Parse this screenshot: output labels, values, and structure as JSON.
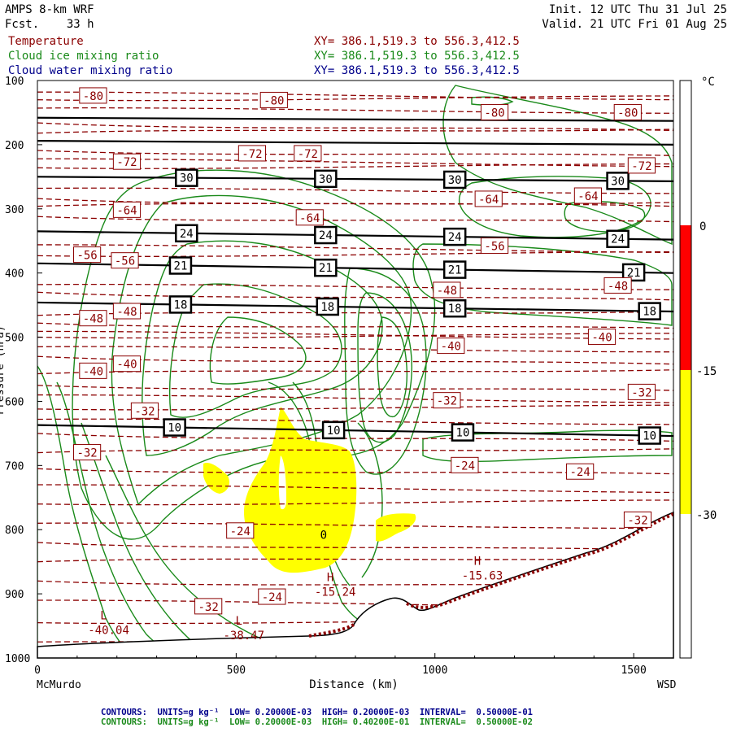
{
  "header": {
    "model": "AMPS 8-km WRF",
    "fcst": "Fcst.    33 h",
    "init": "Init. 12 UTC Thu 31 Jul 25",
    "valid": "Valid. 21 UTC Fri 01 Aug 25",
    "fields": [
      {
        "name": "Temperature",
        "xy": "XY= 386.1,519.3 to 556.3,412.5",
        "color": "#8b0000"
      },
      {
        "name": "Cloud ice mixing ratio",
        "xy": "XY= 386.1,519.3 to 556.3,412.5",
        "color": "#1a8a1a"
      },
      {
        "name": "Cloud water mixing ratio",
        "xy": "XY= 386.1,519.3 to 556.3,412.5",
        "color": "#00008b"
      }
    ]
  },
  "footer": {
    "line1": "CONTOURS:  UNITS=g kg⁻¹  LOW= 0.20000E-03  HIGH= 0.20000E-03  INTERVAL=  0.50000E-01",
    "line2": "CONTOURS:  UNITS=g kg⁻¹  LOW= 0.20000E-03  HIGH= 0.40200E-01  INTERVAL=  0.50000E-02",
    "line1_color": "#00008b",
    "line2_color": "#1a8a1a"
  },
  "colors": {
    "temperature": "#8b0000",
    "ice": "#1a8a1a",
    "theta": "#000000",
    "shade_red": "#ff0000",
    "shade_yellow": "#ffff00"
  },
  "chart_data": {
    "type": "cross-section",
    "xlabel": "Distance (km)",
    "ylabel": "Pressure (hPa)",
    "xlim": [
      0,
      1600
    ],
    "ylim": [
      1000,
      100
    ],
    "x_ticks": [
      0,
      500,
      1000,
      1500
    ],
    "y_ticks": [
      100,
      200,
      300,
      400,
      500,
      600,
      700,
      800,
      900,
      1000
    ],
    "x_endpoints": {
      "left": "McMurdo",
      "right": "WSD"
    },
    "colorbar": {
      "unit": "°C",
      "labels": [
        0,
        -15,
        -30
      ],
      "bands": [
        {
          "from": 0,
          "to": -15,
          "color": "#ff0000"
        },
        {
          "from": -15,
          "to": -30,
          "color": "#ffff00"
        }
      ]
    },
    "theta_lines": [
      {
        "label": "30",
        "points": [
          [
            0,
            250
          ],
          [
            1600,
            257
          ]
        ],
        "label_x": [
          375,
          725,
          1050,
          1460
        ]
      },
      {
        "label": "24",
        "points": [
          [
            0,
            335
          ],
          [
            1600,
            348
          ]
        ],
        "label_x": [
          375,
          725,
          1050,
          1460
        ]
      },
      {
        "label": "21",
        "points": [
          [
            0,
            385
          ],
          [
            1600,
            400
          ]
        ],
        "label_x": [
          360,
          725,
          1050,
          1500
        ]
      },
      {
        "label": "18",
        "points": [
          [
            0,
            446
          ],
          [
            1600,
            460
          ]
        ],
        "label_x": [
          360,
          730,
          1050,
          1540
        ]
      },
      {
        "label": "10",
        "points": [
          [
            0,
            637
          ],
          [
            1600,
            654
          ]
        ],
        "label_x": [
          345,
          745,
          1070,
          1540
        ]
      }
    ],
    "top_lines_hpa": [
      [
        [
          0,
          158
        ],
        [
          1600,
          163
        ]
      ],
      [
        [
          0,
          194
        ],
        [
          1600,
          200
        ]
      ]
    ],
    "temperature_labels": [
      {
        "text": "-80",
        "x": 140,
        "p": 124
      },
      {
        "text": "-80",
        "x": 595,
        "p": 131
      },
      {
        "text": "-80",
        "x": 1150,
        "p": 150
      },
      {
        "text": "-80",
        "x": 1485,
        "p": 150
      },
      {
        "text": "-72",
        "x": 225,
        "p": 227
      },
      {
        "text": "-72",
        "x": 540,
        "p": 214
      },
      {
        "text": "-72",
        "x": 680,
        "p": 214
      },
      {
        "text": "-72",
        "x": 1520,
        "p": 233
      },
      {
        "text": "-64",
        "x": 225,
        "p": 302
      },
      {
        "text": "-64",
        "x": 685,
        "p": 314
      },
      {
        "text": "-64",
        "x": 1135,
        "p": 285
      },
      {
        "text": "-64",
        "x": 1385,
        "p": 280
      },
      {
        "text": "-56",
        "x": 125,
        "p": 372
      },
      {
        "text": "-56",
        "x": 220,
        "p": 381
      },
      {
        "text": "-56",
        "x": 1150,
        "p": 358
      },
      {
        "text": "-48",
        "x": 225,
        "p": 460
      },
      {
        "text": "-48",
        "x": 1030,
        "p": 427
      },
      {
        "text": "-48",
        "x": 1460,
        "p": 420
      },
      {
        "text": "-48",
        "x": 140,
        "p": 471
      },
      {
        "text": "-40",
        "x": 140,
        "p": 553
      },
      {
        "text": "-40",
        "x": 225,
        "p": 542
      },
      {
        "text": "-40",
        "x": 1040,
        "p": 514
      },
      {
        "text": "-40",
        "x": 1420,
        "p": 500
      },
      {
        "text": "-32",
        "x": 270,
        "p": 615
      },
      {
        "text": "-32",
        "x": 125,
        "p": 680
      },
      {
        "text": "-32",
        "x": 1030,
        "p": 599
      },
      {
        "text": "-32",
        "x": 1520,
        "p": 586
      },
      {
        "text": "-32",
        "x": 430,
        "p": 920
      },
      {
        "text": "-32",
        "x": 1510,
        "p": 785
      },
      {
        "text": "-24",
        "x": 510,
        "p": 802
      },
      {
        "text": "-24",
        "x": 590,
        "p": 905
      },
      {
        "text": "-24",
        "x": 1075,
        "p": 700
      },
      {
        "text": "-24",
        "x": 1365,
        "p": 710
      }
    ],
    "extrema": [
      {
        "type": "L",
        "value": "-40.04",
        "x": 240,
        "p": 940
      },
      {
        "type": "L",
        "value": "-38.47",
        "x": 580,
        "p": 948
      },
      {
        "type": "H",
        "value": "-15.24",
        "x": 810,
        "p": 880
      },
      {
        "type": "H",
        "value": "-15.63",
        "x": 1180,
        "p": 855
      }
    ],
    "zero_label": {
      "text": "0",
      "x": 720,
      "p": 808
    }
  }
}
